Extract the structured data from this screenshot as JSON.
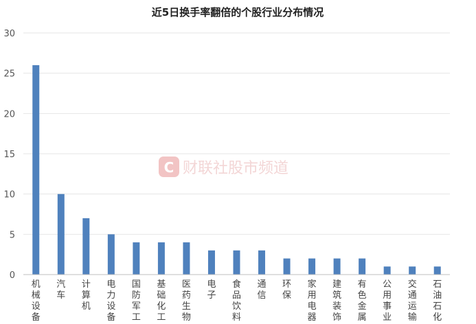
{
  "chart_data": {
    "type": "bar",
    "title": "近5日换手率翻倍的个股行业分布情况",
    "categories": [
      "机械设备",
      "汽车",
      "计算机",
      "电力设备",
      "国防军工",
      "基础化工",
      "医药生物",
      "电子",
      "食品饮料",
      "通信",
      "环保",
      "家用电器",
      "建筑装饰",
      "有色金属",
      "公用事业",
      "交通运输",
      "石油石化"
    ],
    "values": [
      26,
      10,
      7,
      5,
      4,
      4,
      4,
      3,
      3,
      3,
      2,
      2,
      2,
      2,
      1,
      1,
      1
    ],
    "ylim": [
      0,
      30
    ],
    "yticks": [
      0,
      5,
      10,
      15,
      20,
      25,
      30
    ],
    "xlabel": "",
    "ylabel": "",
    "grid": true,
    "bar_color": "#4f81bd"
  },
  "watermark": {
    "icon_letter": "C",
    "text": "财联社股市频道",
    "icon_color": "#f2c4c4"
  }
}
